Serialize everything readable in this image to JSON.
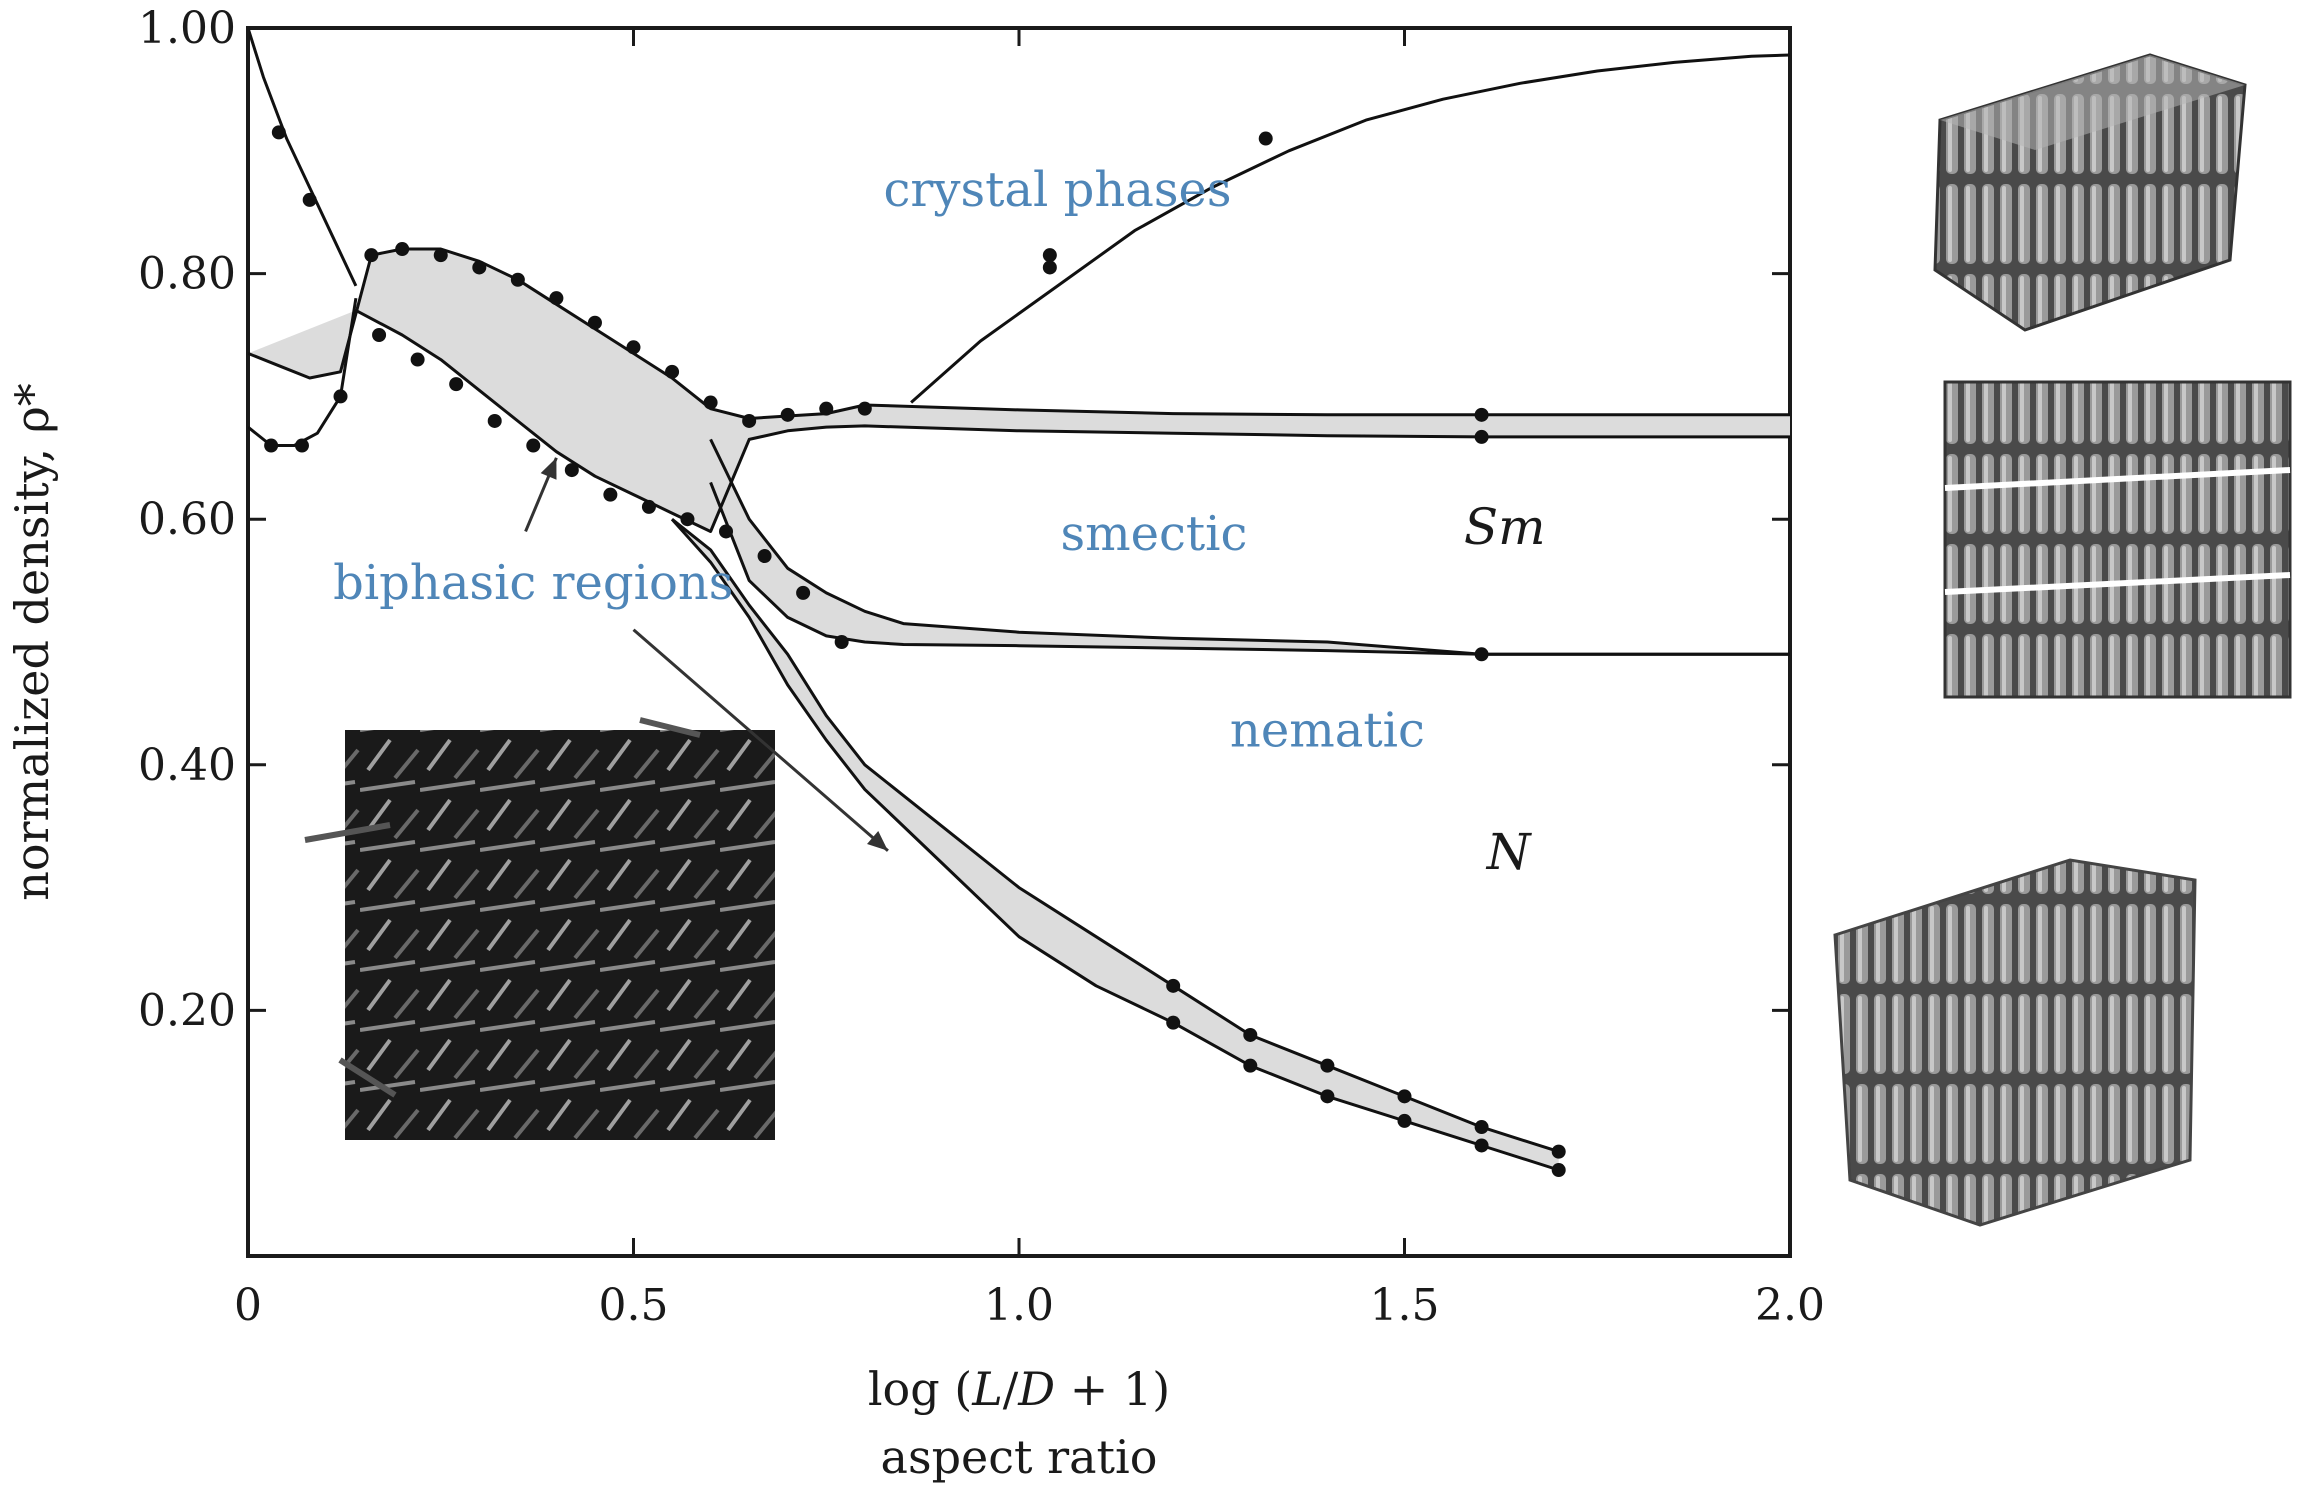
{
  "chart_data": {
    "type": "line",
    "xlabel": "log (L/D + 1)",
    "xlabel_parts": {
      "pre": "log (",
      "var1": "L",
      "mid": "/",
      "var2": "D",
      "post": " + 1)"
    },
    "xlabel_sub": "aspect ratio",
    "ylabel": "normalized density, ρ*",
    "xlim": [
      0,
      2.0
    ],
    "ylim": [
      0,
      1.0
    ],
    "x_ticks": [
      {
        "value": 0,
        "label": "0"
      },
      {
        "value": 0.5,
        "label": "0.5"
      },
      {
        "value": 1.0,
        "label": "1.0"
      },
      {
        "value": 1.5,
        "label": "1.5"
      },
      {
        "value": 2.0,
        "label": "2.0"
      }
    ],
    "y_ticks": [
      {
        "value": 0.2,
        "label": "0.20"
      },
      {
        "value": 0.4,
        "label": "0.40"
      },
      {
        "value": 0.6,
        "label": "0.60"
      },
      {
        "value": 0.8,
        "label": "0.80"
      },
      {
        "value": 1.0,
        "label": "1.00"
      }
    ],
    "grid": false,
    "colors": {
      "region_label": "#4f86b8",
      "biphasic_fill": "#dcdcdc",
      "line": "#111111"
    },
    "series": [
      {
        "key": "crystal_boundary",
        "style": "thin",
        "x": [
          0.0,
          0.02,
          0.05,
          0.08,
          0.11,
          0.14
        ],
        "y": [
          1.0,
          0.96,
          0.91,
          0.87,
          0.83,
          0.79
        ]
      },
      {
        "key": "crystal_boundary_high_ar",
        "style": "thin",
        "x": [
          0.86,
          0.95,
          1.05,
          1.15,
          1.25,
          1.35,
          1.45,
          1.55,
          1.65,
          1.75,
          1.85,
          1.95,
          2.0
        ],
        "y": [
          0.695,
          0.745,
          0.79,
          0.835,
          0.87,
          0.9,
          0.925,
          0.942,
          0.955,
          0.965,
          0.972,
          0.977,
          0.978
        ]
      },
      {
        "key": "crystal_lower_branch",
        "style": "thin",
        "x": [
          0.0,
          0.03,
          0.06,
          0.09,
          0.12,
          0.14
        ],
        "y": [
          0.675,
          0.66,
          0.66,
          0.67,
          0.7,
          0.78
        ]
      },
      {
        "key": "smectic_upper",
        "style": "thin",
        "x": [
          0.0,
          0.04,
          0.08,
          0.12,
          0.16,
          0.2,
          0.25,
          0.3,
          0.35,
          0.4,
          0.45,
          0.5,
          0.55,
          0.6,
          0.65,
          0.7,
          0.75,
          0.8,
          1.0,
          1.2,
          1.4,
          1.6,
          1.8,
          2.0
        ],
        "y": [
          0.735,
          0.725,
          0.715,
          0.72,
          0.815,
          0.82,
          0.82,
          0.81,
          0.795,
          0.775,
          0.755,
          0.735,
          0.715,
          0.69,
          0.682,
          0.684,
          0.686,
          0.693,
          0.689,
          0.686,
          0.685,
          0.685,
          0.685,
          0.685
        ]
      },
      {
        "key": "smectic_lower",
        "style": "thin",
        "x": [
          0.14,
          0.2,
          0.25,
          0.3,
          0.35,
          0.4,
          0.45,
          0.5,
          0.55,
          0.6,
          0.65,
          0.7,
          0.75,
          0.8,
          1.0,
          1.2,
          1.4,
          1.6,
          1.8,
          2.0
        ],
        "y": [
          0.77,
          0.75,
          0.73,
          0.705,
          0.68,
          0.655,
          0.635,
          0.62,
          0.605,
          0.59,
          0.665,
          0.672,
          0.675,
          0.676,
          0.672,
          0.67,
          0.668,
          0.667,
          0.667,
          0.667
        ]
      },
      {
        "key": "nematic_upper",
        "style": "thin",
        "x": [
          0.6,
          0.65,
          0.7,
          0.75,
          0.8,
          0.85,
          1.0,
          1.2,
          1.4,
          1.6,
          1.8,
          2.0
        ],
        "y": [
          0.665,
          0.6,
          0.56,
          0.54,
          0.525,
          0.515,
          0.508,
          0.503,
          0.5,
          0.49,
          0.49,
          0.49
        ]
      },
      {
        "key": "nematic_lower",
        "style": "thin",
        "x": [
          0.6,
          0.65,
          0.7,
          0.75,
          0.8,
          0.85,
          1.0,
          1.2,
          1.4,
          1.6,
          1.8,
          2.0
        ],
        "y": [
          0.63,
          0.55,
          0.52,
          0.505,
          0.5,
          0.498,
          0.497,
          0.495,
          0.493,
          0.49,
          0.49,
          0.49
        ]
      },
      {
        "key": "isotropic_upper",
        "style": "thin",
        "x": [
          0.55,
          0.6,
          0.65,
          0.7,
          0.75,
          0.8,
          0.9,
          1.0,
          1.1,
          1.2,
          1.3,
          1.4,
          1.5,
          1.6,
          1.7
        ],
        "y": [
          0.6,
          0.575,
          0.53,
          0.49,
          0.44,
          0.4,
          0.35,
          0.3,
          0.26,
          0.22,
          0.18,
          0.155,
          0.13,
          0.105,
          0.085
        ]
      },
      {
        "key": "isotropic_lower",
        "style": "thin",
        "x": [
          0.55,
          0.6,
          0.65,
          0.7,
          0.75,
          0.8,
          0.9,
          1.0,
          1.1,
          1.2,
          1.3,
          1.4,
          1.5,
          1.6,
          1.7
        ],
        "y": [
          0.6,
          0.565,
          0.52,
          0.465,
          0.42,
          0.38,
          0.32,
          0.26,
          0.22,
          0.19,
          0.155,
          0.13,
          0.11,
          0.09,
          0.07
        ]
      }
    ],
    "points": {
      "x": [
        0.04,
        0.08,
        0.16,
        0.2,
        0.25,
        0.3,
        0.35,
        0.4,
        0.45,
        0.5,
        0.55,
        0.6,
        0.65,
        0.7,
        0.75,
        0.8,
        1.2,
        1.3,
        1.4,
        1.5,
        1.6,
        1.7,
        0.03,
        0.07,
        0.12,
        0.17,
        0.22,
        0.27,
        0.32,
        0.37,
        0.42,
        0.47,
        0.52,
        0.57,
        0.62,
        0.67,
        0.72,
        0.77,
        1.2,
        1.3,
        1.4,
        1.5,
        1.6,
        1.7,
        1.6,
        1.6,
        1.6,
        1.32,
        1.04,
        1.04
      ],
      "y": [
        0.915,
        0.86,
        0.815,
        0.82,
        0.815,
        0.805,
        0.795,
        0.78,
        0.76,
        0.74,
        0.72,
        0.695,
        0.68,
        0.685,
        0.69,
        0.69,
        0.22,
        0.18,
        0.155,
        0.13,
        0.105,
        0.085,
        0.66,
        0.66,
        0.7,
        0.75,
        0.73,
        0.71,
        0.68,
        0.66,
        0.64,
        0.62,
        0.61,
        0.6,
        0.59,
        0.57,
        0.54,
        0.5,
        0.19,
        0.155,
        0.13,
        0.11,
        0.09,
        0.07,
        0.685,
        0.667,
        0.49,
        0.91,
        0.815,
        0.805
      ]
    },
    "annotations": [
      {
        "text": "crystal phases",
        "x": 1.05,
        "y": 0.855,
        "kind": "region"
      },
      {
        "text": "smectic",
        "x": 1.175,
        "y": 0.575,
        "kind": "region"
      },
      {
        "text": "nematic",
        "x": 1.4,
        "y": 0.415,
        "kind": "region"
      },
      {
        "text": "biphasic regions",
        "x": 0.37,
        "y": 0.535,
        "kind": "region"
      },
      {
        "text": "Sm",
        "x": 1.63,
        "y": 0.58,
        "kind": "symbol"
      },
      {
        "text": "N",
        "x": 1.635,
        "y": 0.315,
        "kind": "symbol"
      }
    ],
    "arrows": [
      {
        "from": [
          0.36,
          0.59
        ],
        "to": [
          0.4,
          0.65
        ]
      },
      {
        "from": [
          0.5,
          0.51
        ],
        "to": [
          0.83,
          0.33
        ]
      }
    ],
    "insets": [
      {
        "key": "inset-isotropic",
        "position": "lower-left inside plot",
        "depicts": "random rod packing"
      },
      {
        "key": "inset-crystal",
        "position": "top-right outside plot",
        "depicts": "crystalline rod stack"
      },
      {
        "key": "inset-smectic",
        "position": "middle-right outside plot",
        "depicts": "layered rods"
      },
      {
        "key": "inset-nematic",
        "position": "lower-right outside plot",
        "depicts": "aligned rods"
      }
    ]
  }
}
